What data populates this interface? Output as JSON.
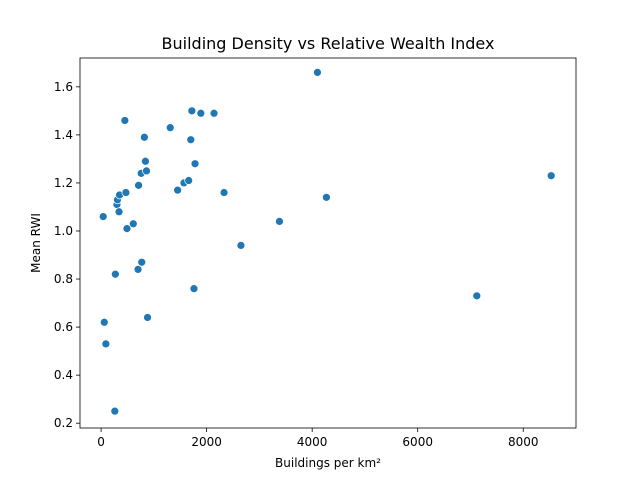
{
  "chart_data": {
    "type": "scatter",
    "title": "Building Density vs Relative Wealth Index",
    "xlabel": "Buildings per km²",
    "ylabel": "Mean RWI",
    "xlim": [
      -400,
      9000
    ],
    "ylim": [
      0.18,
      1.72
    ],
    "xticks": [
      0,
      2000,
      4000,
      6000,
      8000
    ],
    "xtick_labels": [
      "0",
      "2000",
      "4000",
      "6000",
      "8000"
    ],
    "yticks": [
      0.2,
      0.4,
      0.6,
      0.8,
      1.0,
      1.2,
      1.4,
      1.6
    ],
    "ytick_labels": [
      "0.2",
      "0.4",
      "0.6",
      "0.8",
      "1.0",
      "1.2",
      "1.4",
      "1.6"
    ],
    "grid": false,
    "legend": "none",
    "marker_color": "#1f77b4",
    "points": [
      {
        "x": 40,
        "y": 1.06
      },
      {
        "x": 60,
        "y": 0.62
      },
      {
        "x": 90,
        "y": 0.53
      },
      {
        "x": 260,
        "y": 0.25
      },
      {
        "x": 270,
        "y": 0.82
      },
      {
        "x": 300,
        "y": 1.11
      },
      {
        "x": 310,
        "y": 1.13
      },
      {
        "x": 340,
        "y": 1.08
      },
      {
        "x": 350,
        "y": 1.15
      },
      {
        "x": 450,
        "y": 1.46
      },
      {
        "x": 470,
        "y": 1.16
      },
      {
        "x": 490,
        "y": 1.01
      },
      {
        "x": 610,
        "y": 1.03
      },
      {
        "x": 700,
        "y": 0.84
      },
      {
        "x": 710,
        "y": 1.19
      },
      {
        "x": 760,
        "y": 1.24
      },
      {
        "x": 770,
        "y": 0.87
      },
      {
        "x": 820,
        "y": 1.39
      },
      {
        "x": 840,
        "y": 1.29
      },
      {
        "x": 860,
        "y": 1.25
      },
      {
        "x": 880,
        "y": 0.64
      },
      {
        "x": 1310,
        "y": 1.43
      },
      {
        "x": 1450,
        "y": 1.17
      },
      {
        "x": 1570,
        "y": 1.2
      },
      {
        "x": 1660,
        "y": 1.21
      },
      {
        "x": 1700,
        "y": 1.38
      },
      {
        "x": 1720,
        "y": 1.5
      },
      {
        "x": 1760,
        "y": 0.76
      },
      {
        "x": 1780,
        "y": 1.28
      },
      {
        "x": 1890,
        "y": 1.49
      },
      {
        "x": 2140,
        "y": 1.49
      },
      {
        "x": 2330,
        "y": 1.16
      },
      {
        "x": 2650,
        "y": 0.94
      },
      {
        "x": 3380,
        "y": 1.04
      },
      {
        "x": 4100,
        "y": 1.66
      },
      {
        "x": 4270,
        "y": 1.14
      },
      {
        "x": 7120,
        "y": 0.73
      },
      {
        "x": 8530,
        "y": 1.23
      }
    ]
  }
}
